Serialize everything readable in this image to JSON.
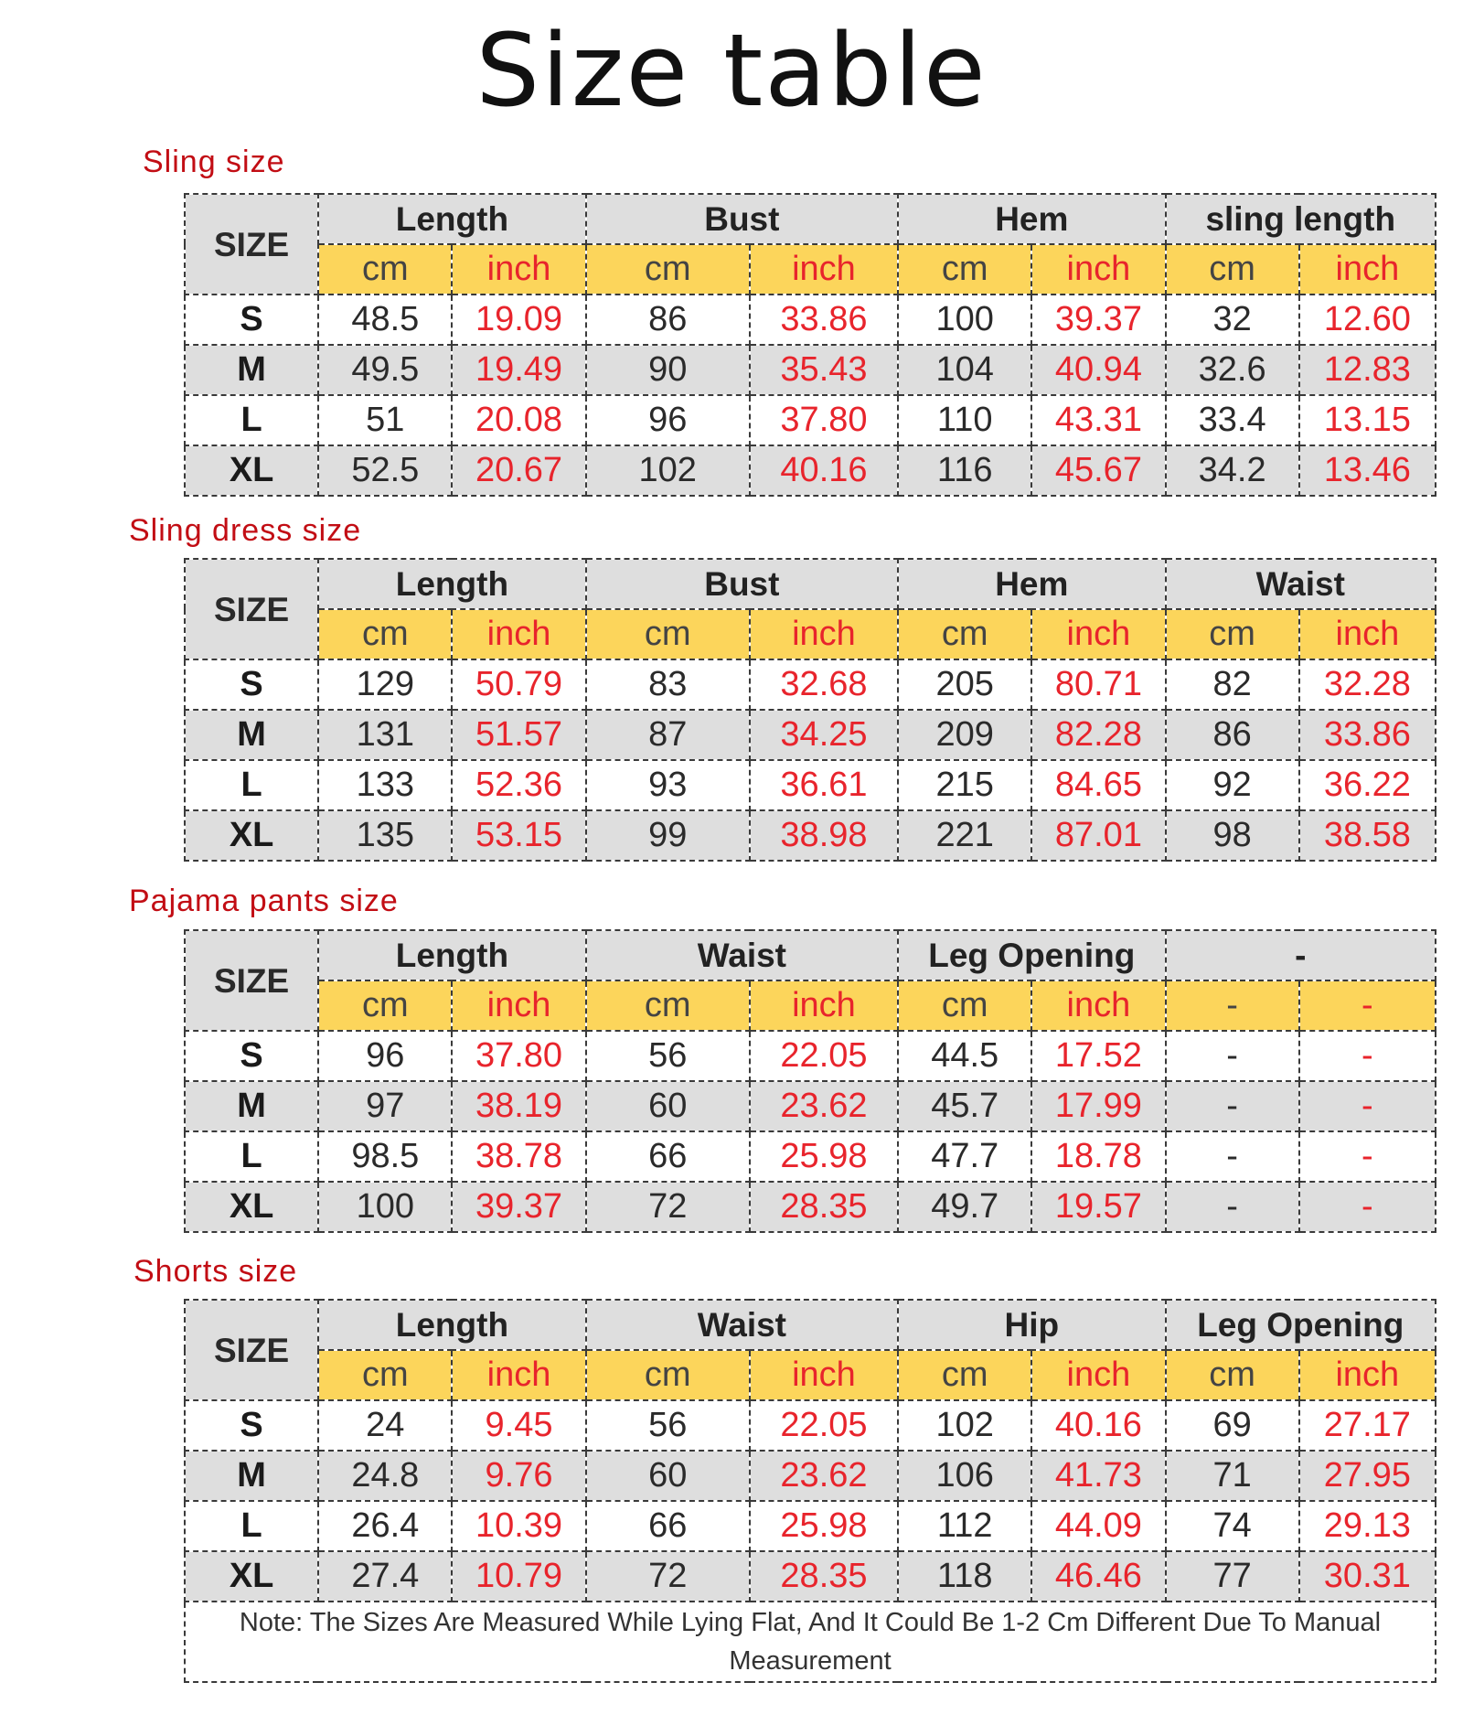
{
  "title": "Size table",
  "colors": {
    "accent_label": "#c20d14",
    "inch_text": "#e8242c",
    "unit_row_bg": "#fcd55b",
    "alt_row_bg": "#dedede"
  },
  "size_header": "SIZE",
  "unit_cm": "cm",
  "unit_inch": "inch",
  "tables": [
    {
      "label": "Sling size",
      "groups": [
        "Length",
        "Bust",
        "Hem",
        "sling length"
      ],
      "units": [
        "cm",
        "inch",
        "cm",
        "inch",
        "cm",
        "inch",
        "cm",
        "inch"
      ],
      "rows": [
        [
          "S",
          "48.5",
          "19.09",
          "86",
          "33.86",
          "100",
          "39.37",
          "32",
          "12.60"
        ],
        [
          "M",
          "49.5",
          "19.49",
          "90",
          "35.43",
          "104",
          "40.94",
          "32.6",
          "12.83"
        ],
        [
          "L",
          "51",
          "20.08",
          "96",
          "37.80",
          "110",
          "43.31",
          "33.4",
          "13.15"
        ],
        [
          "XL",
          "52.5",
          "20.67",
          "102",
          "40.16",
          "116",
          "45.67",
          "34.2",
          "13.46"
        ]
      ]
    },
    {
      "label": "Sling dress size",
      "groups": [
        "Length",
        "Bust",
        "Hem",
        "Waist"
      ],
      "units": [
        "cm",
        "inch",
        "cm",
        "inch",
        "cm",
        "inch",
        "cm",
        "inch"
      ],
      "rows": [
        [
          "S",
          "129",
          "50.79",
          "83",
          "32.68",
          "205",
          "80.71",
          "82",
          "32.28"
        ],
        [
          "M",
          "131",
          "51.57",
          "87",
          "34.25",
          "209",
          "82.28",
          "86",
          "33.86"
        ],
        [
          "L",
          "133",
          "52.36",
          "93",
          "36.61",
          "215",
          "84.65",
          "92",
          "36.22"
        ],
        [
          "XL",
          "135",
          "53.15",
          "99",
          "38.98",
          "221",
          "87.01",
          "98",
          "38.58"
        ]
      ]
    },
    {
      "label": "Pajama pants size",
      "groups": [
        "Length",
        "Waist",
        "Leg Opening",
        "-"
      ],
      "units": [
        "cm",
        "inch",
        "cm",
        "inch",
        "cm",
        "inch",
        "-",
        "-"
      ],
      "rows": [
        [
          "S",
          "96",
          "37.80",
          "56",
          "22.05",
          "44.5",
          "17.52",
          "-",
          "-"
        ],
        [
          "M",
          "97",
          "38.19",
          "60",
          "23.62",
          "45.7",
          "17.99",
          "-",
          "-"
        ],
        [
          "L",
          "98.5",
          "38.78",
          "66",
          "25.98",
          "47.7",
          "18.78",
          "-",
          "-"
        ],
        [
          "XL",
          "100",
          "39.37",
          "72",
          "28.35",
          "49.7",
          "19.57",
          "-",
          "-"
        ]
      ]
    },
    {
      "label": "Shorts size",
      "groups": [
        "Length",
        "Waist",
        "Hip",
        "Leg Opening"
      ],
      "units": [
        "cm",
        "inch",
        "cm",
        "inch",
        "cm",
        "inch",
        "cm",
        "inch"
      ],
      "rows": [
        [
          "S",
          "24",
          "9.45",
          "56",
          "22.05",
          "102",
          "40.16",
          "69",
          "27.17"
        ],
        [
          "M",
          "24.8",
          "9.76",
          "60",
          "23.62",
          "106",
          "41.73",
          "71",
          "27.95"
        ],
        [
          "L",
          "26.4",
          "10.39",
          "66",
          "25.98",
          "112",
          "44.09",
          "74",
          "29.13"
        ],
        [
          "XL",
          "27.4",
          "10.79",
          "72",
          "28.35",
          "118",
          "46.46",
          "77",
          "30.31"
        ]
      ],
      "note": "Note: The Sizes Are Measured While Lying Flat, And It Could Be 1-2 Cm Different Due To Manual Measurement"
    }
  ]
}
